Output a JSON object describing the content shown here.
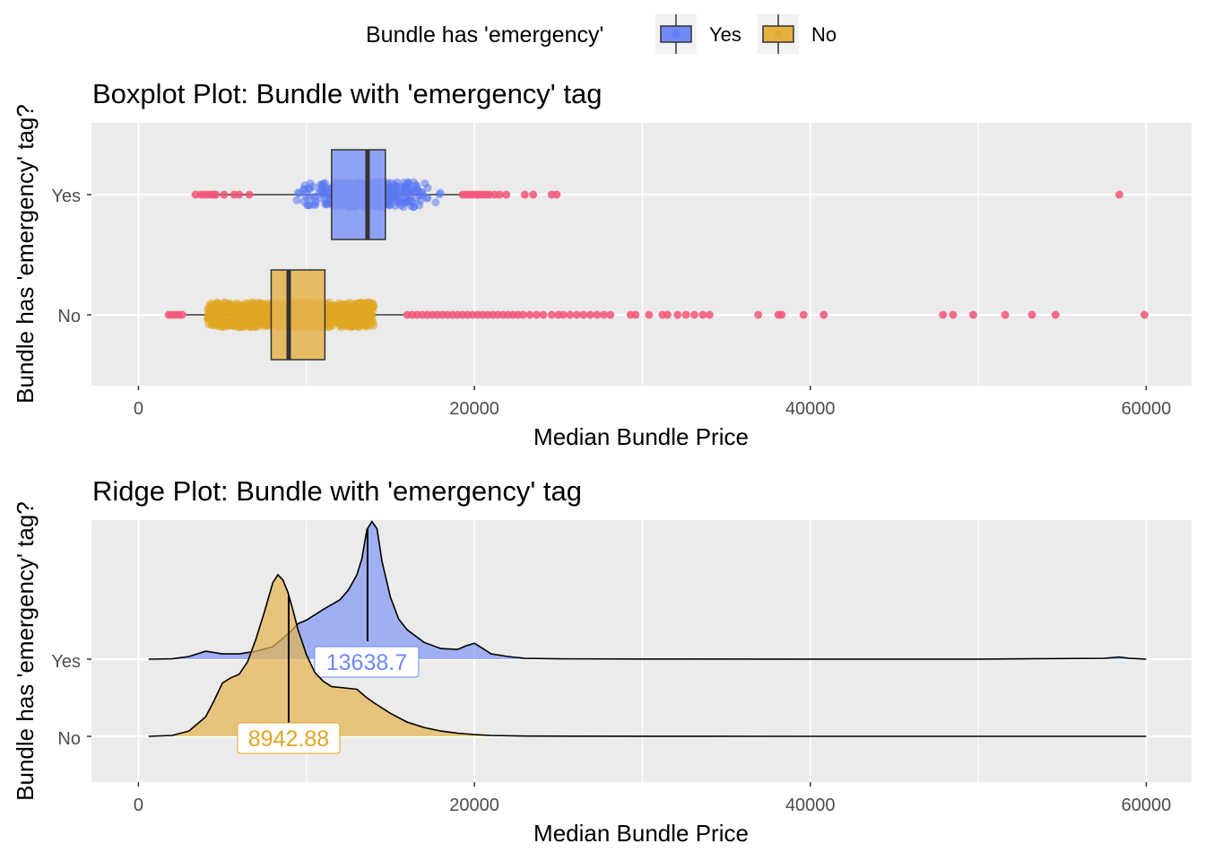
{
  "legend": {
    "title": "Bundle has 'emergency'",
    "items": [
      {
        "label": "Yes",
        "fill": "#6f89f5",
        "point": "#5a78f2"
      },
      {
        "label": "No",
        "fill": "#e6b140",
        "point": "#e0a623"
      }
    ]
  },
  "colors": {
    "yes_fill": "#7f95f5",
    "yes_point": "#5a78f2",
    "no_fill": "#e5b34d",
    "no_point": "#e0a623",
    "outlier": "#f25577",
    "yes_label": "#6f89f5",
    "no_label": "#e0a623"
  },
  "chart_data": [
    {
      "type": "boxplot",
      "title": "Boxplot Plot: Bundle with 'emergency' tag",
      "xlabel": "Median Bundle Price",
      "ylabel": "Bundle has 'emergency' tag?",
      "xlim": [
        -2800,
        62700
      ],
      "x_ticks": [
        0,
        20000,
        40000,
        60000
      ],
      "categories": [
        "Yes",
        "No"
      ],
      "grid": true,
      "series": [
        {
          "name": "Yes",
          "whisker_low": 3500,
          "q1": 11500,
          "median": 13638.7,
          "q3": 14700,
          "whisker_high": 19300,
          "jitter_range": [
            9000,
            18500
          ],
          "outliers": [
            3400,
            3700,
            3900,
            4100,
            4300,
            4500,
            4600,
            5100,
            5700,
            6000,
            6600,
            19300,
            19500,
            19700,
            19900,
            20100,
            20300,
            20500,
            20700,
            20900,
            21200,
            21500,
            21900,
            23000,
            23500,
            24600,
            24900,
            58400
          ]
        },
        {
          "name": "No",
          "whisker_low": 2800,
          "q1": 7900,
          "median": 8942.88,
          "q3": 11100,
          "whisker_high": 15800,
          "jitter_range": [
            4100,
            14000
          ],
          "outliers": [
            1800,
            2000,
            2200,
            2400,
            2600,
            16000,
            16300,
            16600,
            16900,
            17200,
            17500,
            17800,
            18100,
            18400,
            18700,
            19000,
            19300,
            19600,
            19900,
            20200,
            20500,
            20800,
            21100,
            21400,
            21700,
            22000,
            22300,
            22600,
            22900,
            23300,
            23700,
            24100,
            24600,
            25000,
            25300,
            25700,
            26100,
            26500,
            26900,
            27300,
            27700,
            28100,
            29300,
            29600,
            30400,
            31200,
            31500,
            32100,
            32600,
            33100,
            33600,
            34000,
            36900,
            38100,
            38300,
            39600,
            40800,
            47900,
            48500,
            49700,
            51600,
            53200,
            54600,
            59900
          ]
        }
      ]
    },
    {
      "type": "area",
      "subtype": "ridgeline",
      "title": "Ridge Plot: Bundle with 'emergency' tag",
      "xlabel": "Median Bundle Price",
      "ylabel": "Bundle has 'emergency' tag?",
      "xlim": [
        -2800,
        62700
      ],
      "x_ticks": [
        0,
        20000,
        40000,
        60000
      ],
      "categories": [
        "Yes",
        "No"
      ],
      "grid": true,
      "series": [
        {
          "name": "Yes",
          "median": 13638.7,
          "median_label": "13638.7",
          "x": [
            600,
            2000,
            3000,
            4000,
            5000,
            6000,
            7000,
            8000,
            9000,
            9500,
            10000,
            11000,
            12000,
            12500,
            13000,
            13300,
            13600,
            13900,
            14200,
            14500,
            15000,
            15500,
            16000,
            17000,
            18000,
            19000,
            19500,
            20000,
            20500,
            21000,
            22000,
            23000,
            25000,
            30000,
            40000,
            50000,
            57500,
            58400,
            59000,
            60000
          ],
          "density": [
            0,
            0.004,
            0.03,
            0.09,
            0.06,
            0.06,
            0.09,
            0.14,
            0.3,
            0.4,
            0.44,
            0.56,
            0.67,
            0.78,
            0.95,
            1.13,
            1.46,
            1.55,
            1.47,
            1.1,
            0.7,
            0.45,
            0.33,
            0.19,
            0.12,
            0.11,
            0.15,
            0.18,
            0.12,
            0.06,
            0.03,
            0.01,
            0.004,
            0.002,
            0.001,
            0.001,
            0.01,
            0.025,
            0.01,
            0
          ]
        },
        {
          "name": "No",
          "median": 8942.88,
          "median_label": "8942.88",
          "x": [
            600,
            2000,
            3000,
            4000,
            4500,
            5000,
            5500,
            6000,
            6500,
            7000,
            7500,
            8000,
            8300,
            8600,
            8900,
            9200,
            9500,
            10000,
            10500,
            11000,
            11500,
            12000,
            12500,
            13000,
            13500,
            14000,
            15000,
            16000,
            17000,
            18000,
            19000,
            20000,
            21000,
            23000,
            30000,
            40000,
            50000,
            60000
          ],
          "density": [
            0,
            0.01,
            0.06,
            0.22,
            0.4,
            0.6,
            0.66,
            0.7,
            0.84,
            1.1,
            1.4,
            1.73,
            1.82,
            1.76,
            1.62,
            1.42,
            1.2,
            0.92,
            0.72,
            0.62,
            0.56,
            0.55,
            0.54,
            0.53,
            0.45,
            0.38,
            0.26,
            0.16,
            0.1,
            0.06,
            0.035,
            0.02,
            0.01,
            0.003,
            0.001,
            0,
            0,
            0
          ]
        }
      ]
    }
  ]
}
